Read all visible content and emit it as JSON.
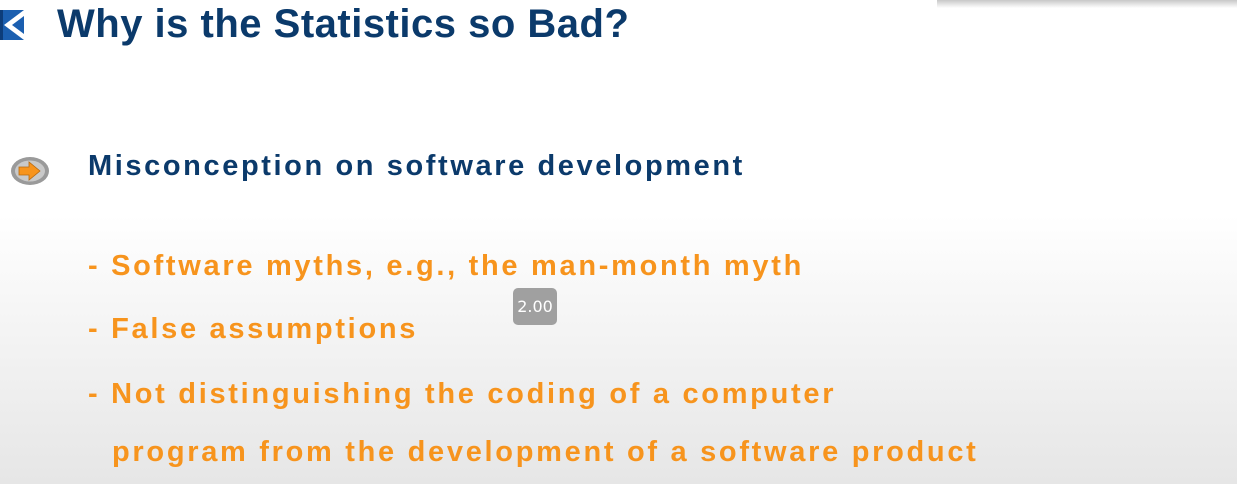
{
  "slide": {
    "title": "Why is the Statistics so Bad?",
    "main_point": "Misconception on software development",
    "sub_points": [
      "- Software myths, e.g., the man-month myth",
      "- False assumptions",
      "- Not distinguishing the coding of a computer",
      "program from the development of a software product"
    ]
  },
  "player": {
    "speed_badge": "2.00"
  },
  "icons": {
    "title_icon": "blue-x-corner-icon",
    "bullet_icon": "orange-arrow-bullet-icon"
  },
  "colors": {
    "title": "#0b3a6b",
    "sub_points": "#f7941d",
    "bullet_fill": "#f7941d"
  }
}
